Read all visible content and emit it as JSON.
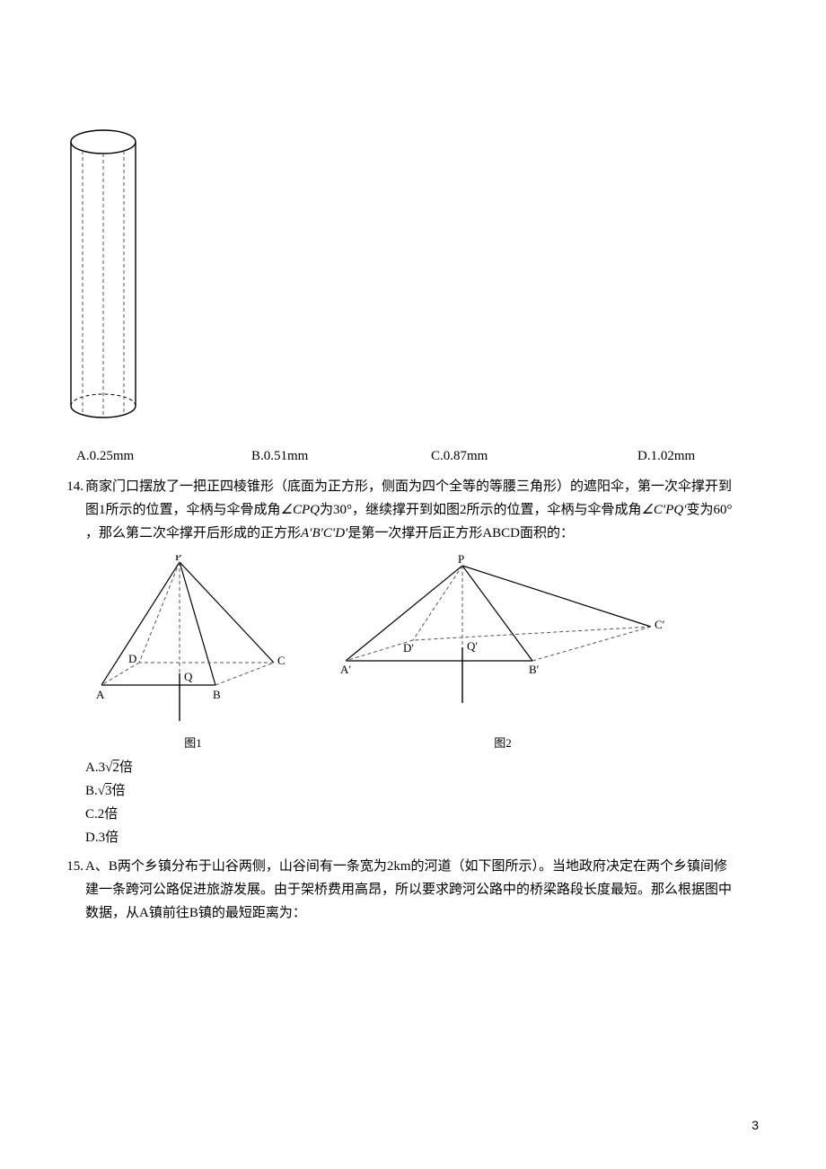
{
  "q13_options": {
    "a": "A.0.25mm",
    "b": "B.0.51mm",
    "c": "C.0.87mm",
    "d": "D.1.02mm"
  },
  "q14": {
    "number": "14.",
    "line1": "商家门口摆放了一把正四棱锥形（底面为正方形，侧面为四个全等的等腰三角形）的遮阳伞，第一次伞撑开到",
    "line2_a": "图1所示的位置，伞柄与伞骨成角",
    "line2_b": "为30°，继续撑开到如图2所示的位置，伞柄与伞骨成角",
    "line2_c": "变为60°",
    "line3_a": "，那么第二次伞撑开后形成的正方形",
    "line3_b": "是第一次撑开后正方形ABCD面积的：",
    "angle1": "∠CPQ",
    "angle2": "∠C′PQ′",
    "square2": "A′B′C′D′",
    "fig1_label": "图1",
    "fig2_label": "图2",
    "options": {
      "a_pre": "A.3",
      "a_rad": "√2",
      "a_post": "倍",
      "b_pre": "B.",
      "b_rad": "√3",
      "b_post": "倍",
      "c": "C.2倍",
      "d": "D.3倍"
    },
    "fig1": {
      "labels": {
        "P": "P",
        "A": "A",
        "B": "B",
        "C": "C",
        "D": "D",
        "Q": "Q"
      }
    },
    "fig2": {
      "labels": {
        "P": "P",
        "A": "A′",
        "B": "B′",
        "C": "C′",
        "D": "D′",
        "Q": "Q′"
      }
    }
  },
  "q15": {
    "number": "15.",
    "line1": "A、B两个乡镇分布于山谷两侧，山谷间有一条宽为2km的河道（如下图所示）。当地政府决定在两个乡镇间修",
    "line2": "建一条跨河公路促进旅游发展。由于架桥费用高昂，所以要求跨河公路中的桥梁路段长度最短。那么根据图中",
    "line3": "数据，从A镇前往B镇的最短距离为："
  },
  "page_number": "3",
  "colors": {
    "text": "#000000",
    "line": "#000000",
    "dash": "#666666"
  }
}
